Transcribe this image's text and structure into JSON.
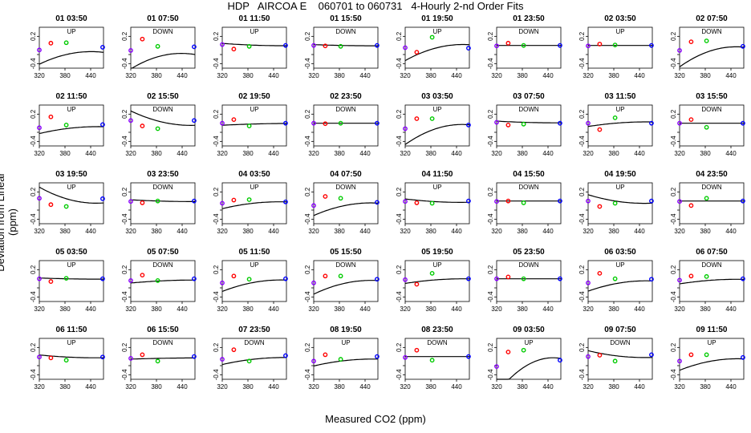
{
  "title": "HDP   AIRCOA E    060701 to 060731   4-Hourly 2-nd Order Fits",
  "xlabel": "Measured CO2 (ppm)",
  "ylabel": "Deviation from Linear (ppm)",
  "colors": {
    "low": "#8b00ff",
    "red": "#ff0000",
    "green": "#00cc00",
    "high": "#0000ff",
    "curve": "#000000"
  },
  "chart_data": {
    "type": "scatter",
    "x_ticks": [
      320,
      380,
      440
    ],
    "y_ticks": [
      -0.4,
      0.2
    ],
    "y_ticks_2": [
      -0.2,
      0.2
    ],
    "xlim": [
      320,
      470
    ],
    "ylim": [
      -0.5,
      0.4
    ],
    "standard_x": [
      320,
      347,
      383,
      468
    ],
    "panels": [
      {
        "label": "01 03:50",
        "dir": "UP",
        "y": [
          -0.1,
          0.05,
          0.06,
          -0.04
        ],
        "fit": [
          -0.2,
          0.0022,
          -1.9e-05
        ]
      },
      {
        "label": "01 07:50",
        "dir": "DOWN",
        "y": [
          -0.11,
          0.14,
          -0.02,
          -0.03
        ],
        "fit": [
          -0.25,
          0.0027,
          -2.45e-05
        ]
      },
      {
        "label": "01 11:50",
        "dir": "UP",
        "y": [
          0.02,
          -0.08,
          -0.02,
          0.0
        ],
        "fit": [
          0.01,
          -0.0004,
          2.5e-06
        ]
      },
      {
        "label": "01 15:50",
        "dir": "DOWN",
        "y": [
          0.0,
          -0.01,
          -0.02,
          0.0
        ],
        "fit": [
          0.0,
          -0.0002,
          1.4e-06
        ]
      },
      {
        "label": "01 19:50",
        "dir": "UP",
        "y": [
          -0.05,
          -0.15,
          0.18,
          -0.06
        ],
        "fit": [
          -0.08,
          0.0028,
          -1.95e-05
        ]
      },
      {
        "label": "01 23:50",
        "dir": "DOWN",
        "y": [
          -0.01,
          0.05,
          0.0,
          0.0
        ],
        "fit": [
          0.0,
          0.0,
          0.0
        ]
      },
      {
        "label": "02 03:50",
        "dir": "UP",
        "y": [
          -0.01,
          0.03,
          0.01,
          0.0
        ],
        "fit": [
          0.0,
          0.0,
          0.0
        ]
      },
      {
        "label": "02 07:50",
        "dir": "DOWN",
        "y": [
          -0.11,
          0.08,
          0.1,
          -0.02
        ],
        "fit": [
          -0.15,
          0.0035,
          -2.55e-05
        ]
      },
      {
        "label": "02 11:50",
        "dir": "UP",
        "y": [
          -0.1,
          0.14,
          -0.04,
          -0.03
        ],
        "fit": [
          -0.12,
          0.0012,
          -8.1e-06
        ]
      },
      {
        "label": "02 15:50",
        "dir": "DOWN",
        "y": [
          0.06,
          -0.06,
          -0.12,
          0.06
        ],
        "fit": [
          0.05,
          -0.0025,
          1.6e-05
        ]
      },
      {
        "label": "02 19:50",
        "dir": "UP",
        "y": [
          0.0,
          0.08,
          -0.06,
          0.0
        ],
        "fit": [
          -0.02,
          0.0003,
          -1.5e-06
        ]
      },
      {
        "label": "02 23:50",
        "dir": "DOWN",
        "y": [
          0.0,
          -0.01,
          0.0,
          0.0
        ],
        "fit": [
          0.0,
          0.0,
          0.0
        ]
      },
      {
        "label": "03 03:50",
        "dir": "UP",
        "y": [
          -0.12,
          0.1,
          0.1,
          -0.04
        ],
        "fit": [
          -0.15,
          0.0035,
          -2.5e-05
        ]
      },
      {
        "label": "03 07:50",
        "dir": "DOWN",
        "y": [
          0.02,
          -0.04,
          -0.02,
          0.0
        ],
        "fit": [
          0.02,
          -0.0003,
          2e-06
        ]
      },
      {
        "label": "03 11:50",
        "dir": "UP",
        "y": [
          0.0,
          -0.14,
          0.12,
          0.0
        ],
        "fit": [
          0.0,
          0.0008,
          -5.5e-06
        ]
      },
      {
        "label": "03 15:50",
        "dir": "DOWN",
        "y": [
          0.0,
          0.08,
          -0.09,
          0.0
        ],
        "fit": [
          0.0,
          0.0,
          0.0
        ]
      },
      {
        "label": "03 19:50",
        "dir": "UP",
        "y": [
          0.06,
          -0.08,
          -0.12,
          0.05
        ],
        "fit": [
          0.05,
          -0.0028,
          2e-05
        ]
      },
      {
        "label": "03 23:50",
        "dir": "DOWN",
        "y": [
          -0.01,
          -0.04,
          0.0,
          0.0
        ],
        "fit": [
          0.0,
          -0.0003,
          1.8e-06
        ]
      },
      {
        "label": "04 03:50",
        "dir": "UP",
        "y": [
          -0.05,
          0.02,
          0.03,
          -0.02
        ],
        "fit": [
          -0.06,
          0.0012,
          -8.5e-06
        ]
      },
      {
        "label": "04 07:50",
        "dir": "DOWN",
        "y": [
          -0.1,
          0.1,
          0.06,
          -0.03
        ],
        "fit": [
          -0.12,
          0.0022,
          -1.55e-05
        ]
      },
      {
        "label": "04 11:50",
        "dir": "UP",
        "y": [
          -0.01,
          -0.04,
          -0.05,
          0.0
        ],
        "fit": [
          -0.01,
          -0.0006,
          4.5e-06
        ]
      },
      {
        "label": "04 15:50",
        "dir": "DOWN",
        "y": [
          -0.01,
          0.0,
          -0.04,
          0.0
        ],
        "fit": [
          0.0,
          0.0,
          0.0
        ]
      },
      {
        "label": "04 19:50",
        "dir": "UP",
        "y": [
          0.0,
          -0.12,
          -0.05,
          0.0
        ],
        "fit": [
          0.0,
          -0.0015,
          1.1e-05
        ]
      },
      {
        "label": "04 23:50",
        "dir": "DOWN",
        "y": [
          -0.01,
          -0.1,
          0.06,
          0.0
        ],
        "fit": [
          0.0,
          0.0,
          0.0
        ]
      },
      {
        "label": "05 03:50",
        "dir": "UP",
        "y": [
          0.0,
          -0.06,
          0.01,
          0.0
        ],
        "fit": [
          0.0,
          -0.0002,
          1.2e-06
        ]
      },
      {
        "label": "05 07:50",
        "dir": "DOWN",
        "y": [
          -0.04,
          0.08,
          -0.04,
          0.0
        ],
        "fit": [
          -0.05,
          0.0005,
          -2.8e-06
        ]
      },
      {
        "label": "05 11:50",
        "dir": "UP",
        "y": [
          -0.09,
          0.06,
          -0.01,
          0.0
        ],
        "fit": [
          -0.1,
          0.002,
          -1.35e-05
        ]
      },
      {
        "label": "05 15:50",
        "dir": "DOWN",
        "y": [
          -0.09,
          0.06,
          0.06,
          -0.01
        ],
        "fit": [
          -0.12,
          0.0024,
          -1.7e-05
        ]
      },
      {
        "label": "05 19:50",
        "dir": "UP",
        "y": [
          -0.02,
          -0.12,
          0.12,
          0.0
        ],
        "fit": [
          -0.03,
          0.0008,
          -5.5e-06
        ]
      },
      {
        "label": "05 23:50",
        "dir": "DOWN",
        "y": [
          0.0,
          0.04,
          0.0,
          0.0
        ],
        "fit": [
          0.0,
          0.0,
          0.0
        ]
      },
      {
        "label": "06 03:50",
        "dir": "UP",
        "y": [
          -0.09,
          0.12,
          0.0,
          -0.01
        ],
        "fit": [
          -0.11,
          0.0018,
          -1.25e-05
        ]
      },
      {
        "label": "06 07:50",
        "dir": "DOWN",
        "y": [
          -0.03,
          0.06,
          0.05,
          0.0
        ],
        "fit": [
          -0.04,
          0.0008,
          -5.5e-06
        ]
      },
      {
        "label": "06 11:50",
        "dir": "UP",
        "y": [
          -0.01,
          -0.03,
          -0.08,
          -0.01
        ],
        "fit": [
          -0.01,
          -0.0005,
          3.5e-06
        ]
      },
      {
        "label": "06 15:50",
        "dir": "DOWN",
        "y": [
          -0.04,
          0.04,
          -0.1,
          0.0
        ],
        "fit": [
          -0.04,
          0.0002,
          -1e-06
        ]
      },
      {
        "label": "07 23:50",
        "dir": "DOWN",
        "y": [
          -0.06,
          0.15,
          -0.1,
          0.02
        ],
        "fit": [
          -0.07,
          0.0012,
          -7.5e-06
        ]
      },
      {
        "label": "08 19:50",
        "dir": "UP",
        "y": [
          -0.1,
          0.04,
          -0.06,
          0.0
        ],
        "fit": [
          -0.1,
          0.0012,
          -8e-06
        ]
      },
      {
        "label": "08 23:50",
        "dir": "DOWN",
        "y": [
          -0.02,
          0.14,
          -0.08,
          0.0
        ],
        "fit": [
          0.0,
          0.0,
          0.0
        ]
      },
      {
        "label": "09 03:50",
        "dir": "UP",
        "y": [
          -0.22,
          0.1,
          0.14,
          -0.08
        ],
        "fit": [
          -0.24,
          0.0062,
          -4.5e-05
        ]
      },
      {
        "label": "09 07:50",
        "dir": "DOWN",
        "y": [
          0.0,
          0.03,
          -0.1,
          0.04
        ],
        "fit": [
          0.02,
          -0.0012,
          8.5e-06
        ]
      },
      {
        "label": "09 11:50",
        "dir": "UP",
        "y": [
          -0.1,
          0.04,
          0.04,
          -0.02
        ],
        "fit": [
          -0.12,
          0.002,
          -1.4e-05
        ]
      }
    ]
  }
}
